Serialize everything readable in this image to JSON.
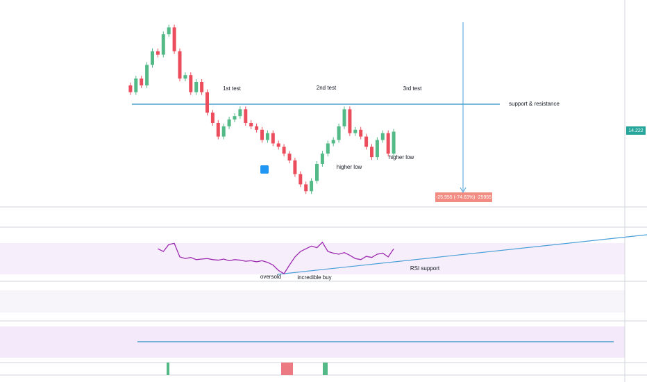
{
  "annotations": {
    "first_test": "1st test",
    "second_test": "2nd test",
    "third_test": "3rd test",
    "support_resistance": "support & resistance",
    "higher_low_1": "higher low",
    "higher_low_2": "higher low",
    "oversold": "oversold",
    "incredible_buy": "incredible buy",
    "rsi_support": "RSI support",
    "measure": "-25.955 (-74.63%) -25955",
    "last_price": "14.222"
  },
  "price": {
    "ylim": [
      4,
      33
    ],
    "up_color": "#53b987",
    "down_color": "#eb4d5c",
    "close": [
      21,
      20,
      22,
      21,
      24,
      26,
      25.5,
      28.5,
      29.5,
      26,
      22,
      22.5,
      20,
      21.5,
      20,
      17,
      15.5,
      13.5,
      15,
      16,
      16.5,
      17.5,
      15.5,
      15,
      14.5,
      13,
      14,
      12.5,
      12,
      11,
      10,
      8,
      6.5,
      5.5,
      7,
      9.5,
      11,
      12.5,
      13,
      15,
      17.5,
      14,
      14.5,
      13.5,
      12,
      10.5,
      13,
      14,
      11,
      14.222
    ]
  },
  "rsi": {
    "ylim": [
      0,
      100
    ],
    "color": "#9c27b0",
    "values": [
      null,
      null,
      null,
      null,
      null,
      null,
      60,
      55,
      68,
      70,
      45,
      42,
      44,
      40,
      41,
      42,
      40,
      39,
      41,
      38,
      40,
      39,
      37,
      38,
      36,
      38,
      35,
      30,
      20,
      14,
      30,
      45,
      55,
      60,
      65,
      62,
      72,
      55,
      52,
      50,
      53,
      48,
      42,
      40,
      46,
      44,
      50,
      52,
      45,
      60
    ]
  }
}
